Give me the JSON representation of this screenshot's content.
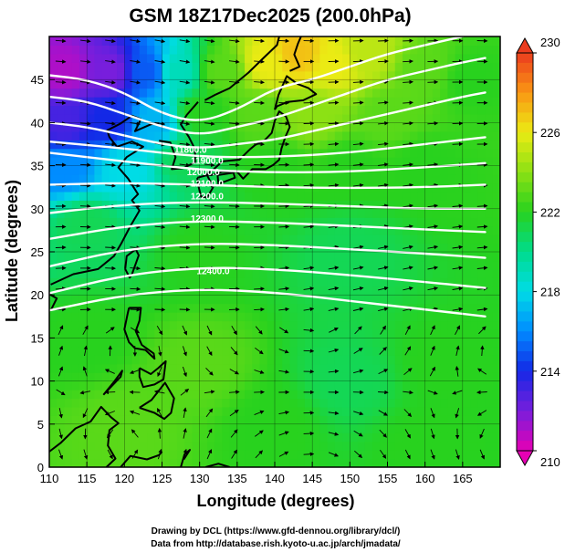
{
  "title": "GSM 18Z17Dec2025 (200.0hPa)",
  "credits": [
    "Drawing by DCL (https://www.gfd-dennou.org/library/dcl/)",
    "Data from http://database.rish.kyoto-u.ac.jp/arch/jmadata/"
  ],
  "colors": {
    "coast": "#000000",
    "contour": "#ffffff",
    "grid": "#000000",
    "arrow": "#000000"
  },
  "chart_data": {
    "type": "heatmap",
    "title": "GSM 18Z17Dec2025 (200.0hPa)",
    "xlabel": "Longitude (degrees)",
    "ylabel": "Latitude  (degrees)",
    "xlim": [
      110,
      170
    ],
    "ylim": [
      0,
      50
    ],
    "xticks": [
      110,
      115,
      120,
      125,
      130,
      135,
      140,
      145,
      150,
      155,
      160,
      165
    ],
    "yticks": [
      0,
      5,
      10,
      15,
      20,
      25,
      30,
      35,
      40,
      45
    ],
    "grid": true,
    "colorbar": {
      "quantity": "temperature",
      "range": [
        210,
        230
      ],
      "ticks": [
        210,
        214,
        218,
        222,
        226,
        230
      ],
      "placement": "right"
    },
    "field_samples": [
      {
        "lon": 112,
        "lat": 46,
        "value": 211
      },
      {
        "lon": 118,
        "lat": 46,
        "value": 212
      },
      {
        "lon": 123,
        "lat": 46,
        "value": 215
      },
      {
        "lon": 127,
        "lat": 46,
        "value": 219
      },
      {
        "lon": 133,
        "lat": 46,
        "value": 223
      },
      {
        "lon": 139,
        "lat": 47,
        "value": 226
      },
      {
        "lon": 143,
        "lat": 48,
        "value": 227
      },
      {
        "lon": 148,
        "lat": 47,
        "value": 226
      },
      {
        "lon": 152,
        "lat": 48,
        "value": 225
      },
      {
        "lon": 160,
        "lat": 46,
        "value": 223
      },
      {
        "lon": 166,
        "lat": 45,
        "value": 222
      },
      {
        "lon": 112,
        "lat": 40,
        "value": 213
      },
      {
        "lon": 118,
        "lat": 40,
        "value": 214
      },
      {
        "lon": 124,
        "lat": 40,
        "value": 217
      },
      {
        "lon": 130,
        "lat": 41,
        "value": 222
      },
      {
        "lon": 138,
        "lat": 41,
        "value": 223
      },
      {
        "lon": 145,
        "lat": 41,
        "value": 224
      },
      {
        "lon": 155,
        "lat": 41,
        "value": 223
      },
      {
        "lon": 112,
        "lat": 35,
        "value": 216
      },
      {
        "lon": 120,
        "lat": 35,
        "value": 218
      },
      {
        "lon": 128,
        "lat": 36,
        "value": 221
      },
      {
        "lon": 140,
        "lat": 35,
        "value": 222
      },
      {
        "lon": 150,
        "lat": 35,
        "value": 222
      },
      {
        "lon": 160,
        "lat": 35,
        "value": 222
      },
      {
        "lon": 115,
        "lat": 28,
        "value": 221
      },
      {
        "lon": 130,
        "lat": 25,
        "value": 222
      },
      {
        "lon": 150,
        "lat": 25,
        "value": 221
      },
      {
        "lon": 115,
        "lat": 15,
        "value": 222
      },
      {
        "lon": 130,
        "lat": 12,
        "value": 223
      },
      {
        "lon": 150,
        "lat": 10,
        "value": 221
      },
      {
        "lon": 162,
        "lat": 12,
        "value": 222
      },
      {
        "lon": 120,
        "lat": 5,
        "value": 223
      },
      {
        "lon": 140,
        "lat": 5,
        "value": 222
      },
      {
        "lon": 160,
        "lat": 3,
        "value": 222
      }
    ],
    "contours": [
      {
        "label": "11800.0"
      },
      {
        "label": "11900.0"
      },
      {
        "label": "12000.0"
      },
      {
        "label": "12100.0"
      },
      {
        "label": "12200.0"
      },
      {
        "label": "12300.0"
      },
      {
        "label": "12400.0"
      }
    ],
    "contour_lines": [
      {
        "level": 11500,
        "points": [
          [
            110,
            45.5
          ],
          [
            115,
            45
          ],
          [
            120,
            43.5
          ],
          [
            125,
            41
          ],
          [
            130,
            40
          ],
          [
            135,
            41.5
          ],
          [
            140,
            44
          ],
          [
            145,
            45
          ],
          [
            150,
            46.5
          ],
          [
            155,
            48
          ],
          [
            160,
            49
          ],
          [
            165,
            50
          ]
        ]
      },
      {
        "level": 11600,
        "points": [
          [
            110,
            43
          ],
          [
            115,
            42.5
          ],
          [
            120,
            41
          ],
          [
            125,
            39.5
          ],
          [
            130,
            38.5
          ],
          [
            135,
            39.5
          ],
          [
            140,
            40.5
          ],
          [
            145,
            42
          ],
          [
            150,
            43.5
          ],
          [
            155,
            45
          ],
          [
            160,
            46
          ],
          [
            165,
            47
          ],
          [
            168,
            47.5
          ]
        ]
      },
      {
        "level": 11700,
        "points": [
          [
            110,
            40
          ],
          [
            115,
            39.5
          ],
          [
            120,
            38.5
          ],
          [
            125,
            37.5
          ],
          [
            130,
            37
          ],
          [
            135,
            37.5
          ],
          [
            140,
            38
          ],
          [
            145,
            39
          ],
          [
            150,
            40
          ],
          [
            155,
            41
          ],
          [
            160,
            42
          ],
          [
            165,
            43
          ],
          [
            168,
            43.5
          ]
        ]
      },
      {
        "level": 11800,
        "points": [
          [
            110,
            37.8
          ],
          [
            120,
            37
          ],
          [
            130,
            36
          ],
          [
            140,
            36
          ],
          [
            150,
            36.5
          ],
          [
            160,
            37.5
          ],
          [
            168,
            38.3
          ]
        ]
      },
      {
        "level": 11900,
        "points": [
          [
            110,
            36.5
          ],
          [
            120,
            35.5
          ],
          [
            130,
            34.5
          ],
          [
            140,
            34.2
          ],
          [
            150,
            34.3
          ],
          [
            160,
            34.8
          ],
          [
            168,
            35.3
          ]
        ]
      },
      {
        "level": 12000,
        "points": [
          [
            110,
            32.8
          ],
          [
            120,
            33
          ],
          [
            130,
            32.8
          ],
          [
            140,
            32.5
          ],
          [
            150,
            32.4
          ],
          [
            160,
            32.5
          ],
          [
            168,
            32.8
          ]
        ]
      },
      {
        "level": 12100,
        "points": [
          [
            110,
            29.5
          ],
          [
            120,
            30.5
          ],
          [
            130,
            30.8
          ],
          [
            140,
            30.6
          ],
          [
            150,
            30.3
          ],
          [
            160,
            30
          ],
          [
            168,
            30
          ]
        ]
      },
      {
        "level": 12200,
        "points": [
          [
            110,
            26.5
          ],
          [
            120,
            28
          ],
          [
            130,
            28.6
          ],
          [
            140,
            28.4
          ],
          [
            150,
            28
          ],
          [
            160,
            27.6
          ],
          [
            168,
            27.3
          ]
        ]
      },
      {
        "level": 12300,
        "points": [
          [
            110,
            23.3
          ],
          [
            120,
            25.3
          ],
          [
            130,
            26
          ],
          [
            140,
            25.8
          ],
          [
            150,
            25.3
          ],
          [
            160,
            24.8
          ],
          [
            168,
            24.3
          ]
        ]
      },
      {
        "level": 12400,
        "points": [
          [
            110,
            20.2
          ],
          [
            120,
            22.3
          ],
          [
            130,
            23.2
          ],
          [
            140,
            23
          ],
          [
            150,
            22.3
          ],
          [
            160,
            21.5
          ],
          [
            168,
            20.8
          ]
        ]
      },
      {
        "level": 12500,
        "points": [
          [
            110,
            18.2
          ],
          [
            120,
            20
          ],
          [
            130,
            20.7
          ],
          [
            140,
            20.3
          ],
          [
            150,
            19.3
          ],
          [
            160,
            18.3
          ],
          [
            168,
            17.5
          ]
        ]
      }
    ]
  }
}
